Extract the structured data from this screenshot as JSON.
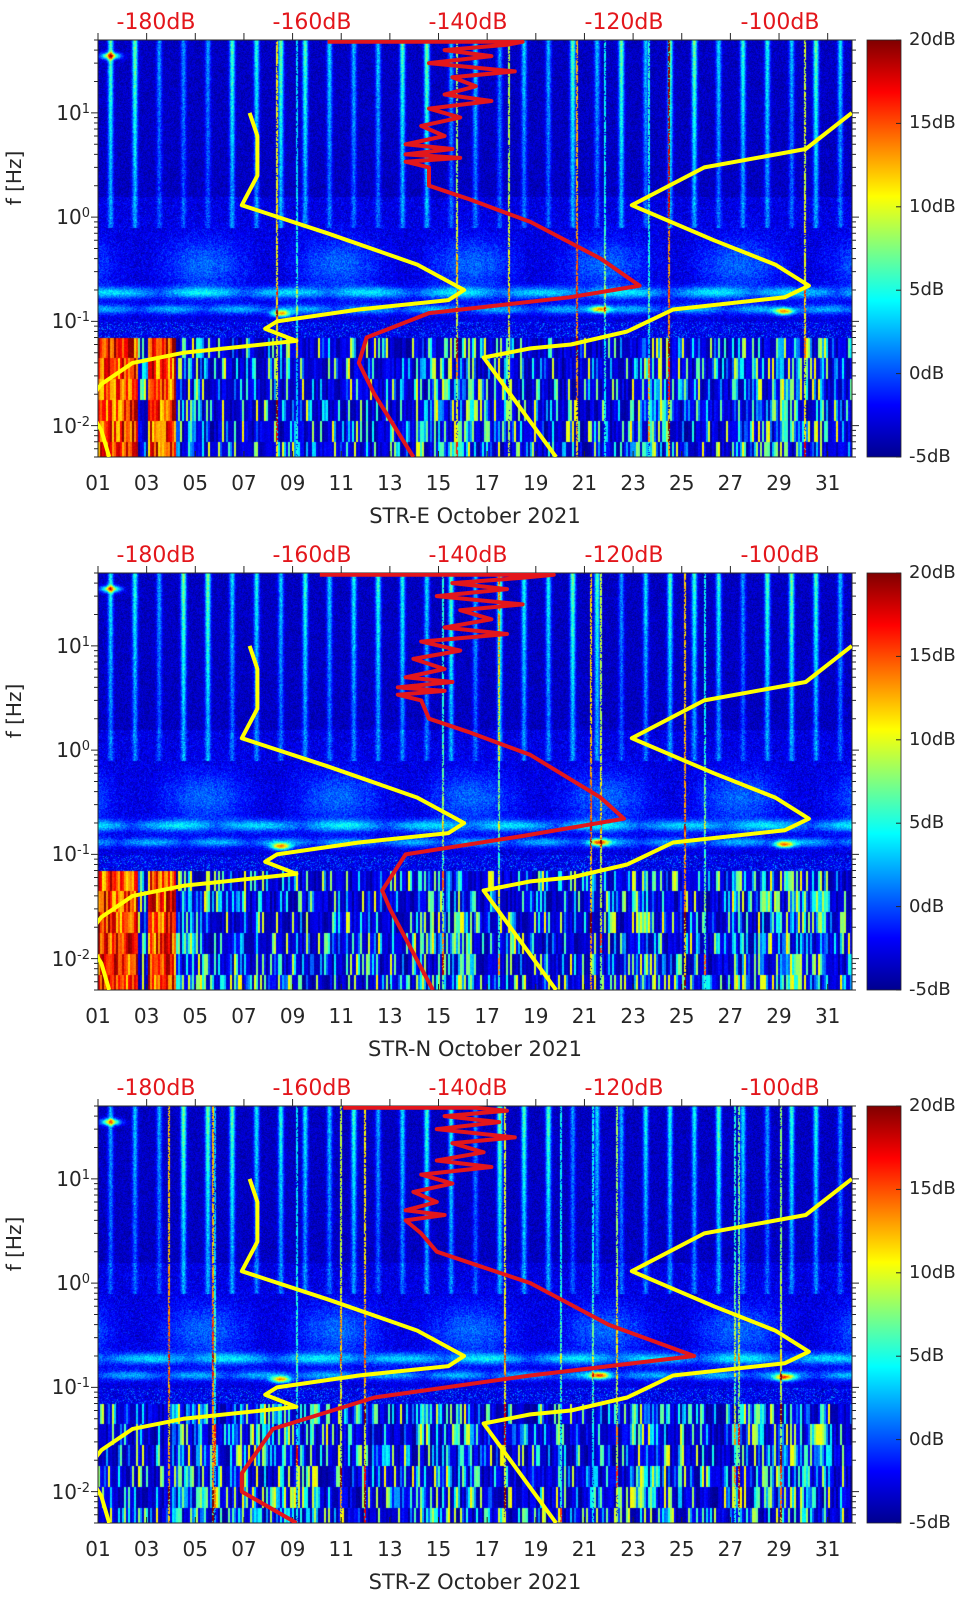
{
  "chart_data": {
    "type": "heatmap",
    "common": {
      "x_axis": {
        "range_days": [
          1,
          32
        ],
        "tick_labels": [
          "01",
          "03",
          "05",
          "07",
          "09",
          "11",
          "13",
          "15",
          "17",
          "19",
          "21",
          "23",
          "25",
          "27",
          "29",
          "31"
        ],
        "tick_days": [
          1,
          3,
          5,
          7,
          9,
          11,
          13,
          15,
          17,
          19,
          21,
          23,
          25,
          27,
          29,
          31
        ]
      },
      "y_axis": {
        "label": "f [Hz]",
        "scale": "log",
        "range_hz": [
          0.005,
          50
        ],
        "ticks": [
          {
            "base": "10",
            "exp": "1",
            "value": 10
          },
          {
            "base": "10",
            "exp": "0",
            "value": 1
          },
          {
            "base": "10",
            "exp": "-1",
            "value": 0.1
          },
          {
            "base": "10",
            "exp": "-2",
            "value": 0.01
          }
        ]
      },
      "top_axis": {
        "labels": [
          {
            "text": "-180dB",
            "value": -180
          },
          {
            "text": "-160dB",
            "value": -160
          },
          {
            "text": "-140dB",
            "value": -140
          },
          {
            "text": "-120dB",
            "value": -120
          },
          {
            "text": "-100dB",
            "value": -100
          }
        ]
      },
      "colorbar": {
        "range_db": [
          -5,
          20
        ],
        "colormap": "jet",
        "ticks": [
          {
            "text": "20dB",
            "value": 20
          },
          {
            "text": "15dB",
            "value": 15
          },
          {
            "text": "10dB",
            "value": 10
          },
          {
            "text": "5dB",
            "value": 5
          },
          {
            "text": "0dB",
            "value": 0
          },
          {
            "text": "-5dB",
            "value": -5
          }
        ]
      },
      "low_noise_model": {
        "color": "#ffff00",
        "points_db_hz": [
          [
            -168,
            10
          ],
          [
            -167,
            6
          ],
          [
            -167,
            2.5
          ],
          [
            -169,
            1.3
          ],
          [
            -158,
            0.7
          ],
          [
            -146.5,
            0.35
          ],
          [
            -140.5,
            0.2
          ],
          [
            -142.5,
            0.16
          ],
          [
            -154,
            0.13
          ],
          [
            -164.5,
            0.1
          ],
          [
            -166,
            0.085
          ],
          [
            -162,
            0.065
          ],
          [
            -176.5,
            0.05
          ],
          [
            -183,
            0.04
          ],
          [
            -187,
            0.025
          ],
          [
            -189,
            0.016
          ],
          [
            -187,
            0.009
          ],
          [
            -186,
            0.005
          ]
        ]
      },
      "high_noise_model": {
        "color": "#ffff00",
        "points_db_hz": [
          [
            -90.8,
            10
          ],
          [
            -96.7,
            4.5
          ],
          [
            -109.7,
            3
          ],
          [
            -119,
            1.3
          ],
          [
            -108.5,
            0.6
          ],
          [
            -100.6,
            0.35
          ],
          [
            -96.3,
            0.22
          ],
          [
            -99.4,
            0.17
          ],
          [
            -113.7,
            0.13
          ],
          [
            -119.6,
            0.08
          ],
          [
            -126.8,
            0.06
          ],
          [
            -132,
            0.055
          ],
          [
            -138,
            0.045
          ],
          [
            -128.7,
            0.005
          ]
        ]
      }
    },
    "panels": [
      {
        "xlabel": "STR-E October 2021",
        "psd_color": "#e3161b",
        "psd_points_db_hz": [
          [
            -158,
            48
          ],
          [
            -133,
            48
          ],
          [
            -135,
            45
          ],
          [
            -143,
            40
          ],
          [
            -137,
            35
          ],
          [
            -145,
            30
          ],
          [
            -134,
            25
          ],
          [
            -142,
            22
          ],
          [
            -139,
            18
          ],
          [
            -143,
            15
          ],
          [
            -137,
            13
          ],
          [
            -145,
            11
          ],
          [
            -141,
            9
          ],
          [
            -146,
            7.5
          ],
          [
            -143,
            6
          ],
          [
            -148,
            5
          ],
          [
            -142,
            4.5
          ],
          [
            -148,
            4
          ],
          [
            -141,
            3.7
          ],
          [
            -148,
            3.4
          ],
          [
            -145,
            3
          ],
          [
            -145,
            2
          ],
          [
            -140,
            1.5
          ],
          [
            -132,
            0.9
          ],
          [
            -123,
            0.4
          ],
          [
            -118,
            0.22
          ],
          [
            -127,
            0.17
          ],
          [
            -145,
            0.12
          ],
          [
            -153,
            0.07
          ],
          [
            -154,
            0.04
          ],
          [
            -152,
            0.02
          ],
          [
            -147,
            0.005
          ]
        ]
      },
      {
        "xlabel": "STR-N October 2021",
        "psd_color": "#e3161b",
        "psd_points_db_hz": [
          [
            -159,
            48
          ],
          [
            -129,
            48
          ],
          [
            -133,
            45
          ],
          [
            -142,
            40
          ],
          [
            -135,
            35
          ],
          [
            -144,
            30
          ],
          [
            -133,
            25
          ],
          [
            -141,
            22
          ],
          [
            -137,
            18
          ],
          [
            -143,
            15
          ],
          [
            -135,
            13
          ],
          [
            -146,
            11
          ],
          [
            -141,
            9
          ],
          [
            -147,
            7.5
          ],
          [
            -143,
            6
          ],
          [
            -148,
            5
          ],
          [
            -142,
            4.5
          ],
          [
            -149,
            4
          ],
          [
            -143,
            3.7
          ],
          [
            -149,
            3.4
          ],
          [
            -146,
            3
          ],
          [
            -145,
            2
          ],
          [
            -140,
            1.5
          ],
          [
            -132,
            0.9
          ],
          [
            -123,
            0.35
          ],
          [
            -120,
            0.22
          ],
          [
            -133,
            0.15
          ],
          [
            -148,
            0.1
          ],
          [
            -151,
            0.045
          ],
          [
            -150,
            0.03
          ],
          [
            -144.5,
            0.005
          ]
        ]
      },
      {
        "xlabel": "STR-Z October 2021",
        "psd_color": "#e3161b",
        "psd_points_db_hz": [
          [
            -156,
            48
          ],
          [
            -139,
            48
          ],
          [
            -135,
            45
          ],
          [
            -143,
            40
          ],
          [
            -136,
            35
          ],
          [
            -144,
            30
          ],
          [
            -134,
            25
          ],
          [
            -142,
            22
          ],
          [
            -138,
            18
          ],
          [
            -144,
            15
          ],
          [
            -137,
            13
          ],
          [
            -146,
            11
          ],
          [
            -142,
            9
          ],
          [
            -147,
            7.5
          ],
          [
            -144,
            6
          ],
          [
            -148,
            5
          ],
          [
            -143,
            4.5
          ],
          [
            -148,
            4
          ],
          [
            -146,
            3
          ],
          [
            -144,
            2
          ],
          [
            -139,
            1.5
          ],
          [
            -132,
            1
          ],
          [
            -122,
            0.4
          ],
          [
            -111,
            0.2
          ],
          [
            -132,
            0.13
          ],
          [
            -152,
            0.08
          ],
          [
            -165,
            0.04
          ],
          [
            -169,
            0.015
          ],
          [
            -169,
            0.01
          ],
          [
            -162,
            0.005
          ]
        ]
      }
    ]
  }
}
